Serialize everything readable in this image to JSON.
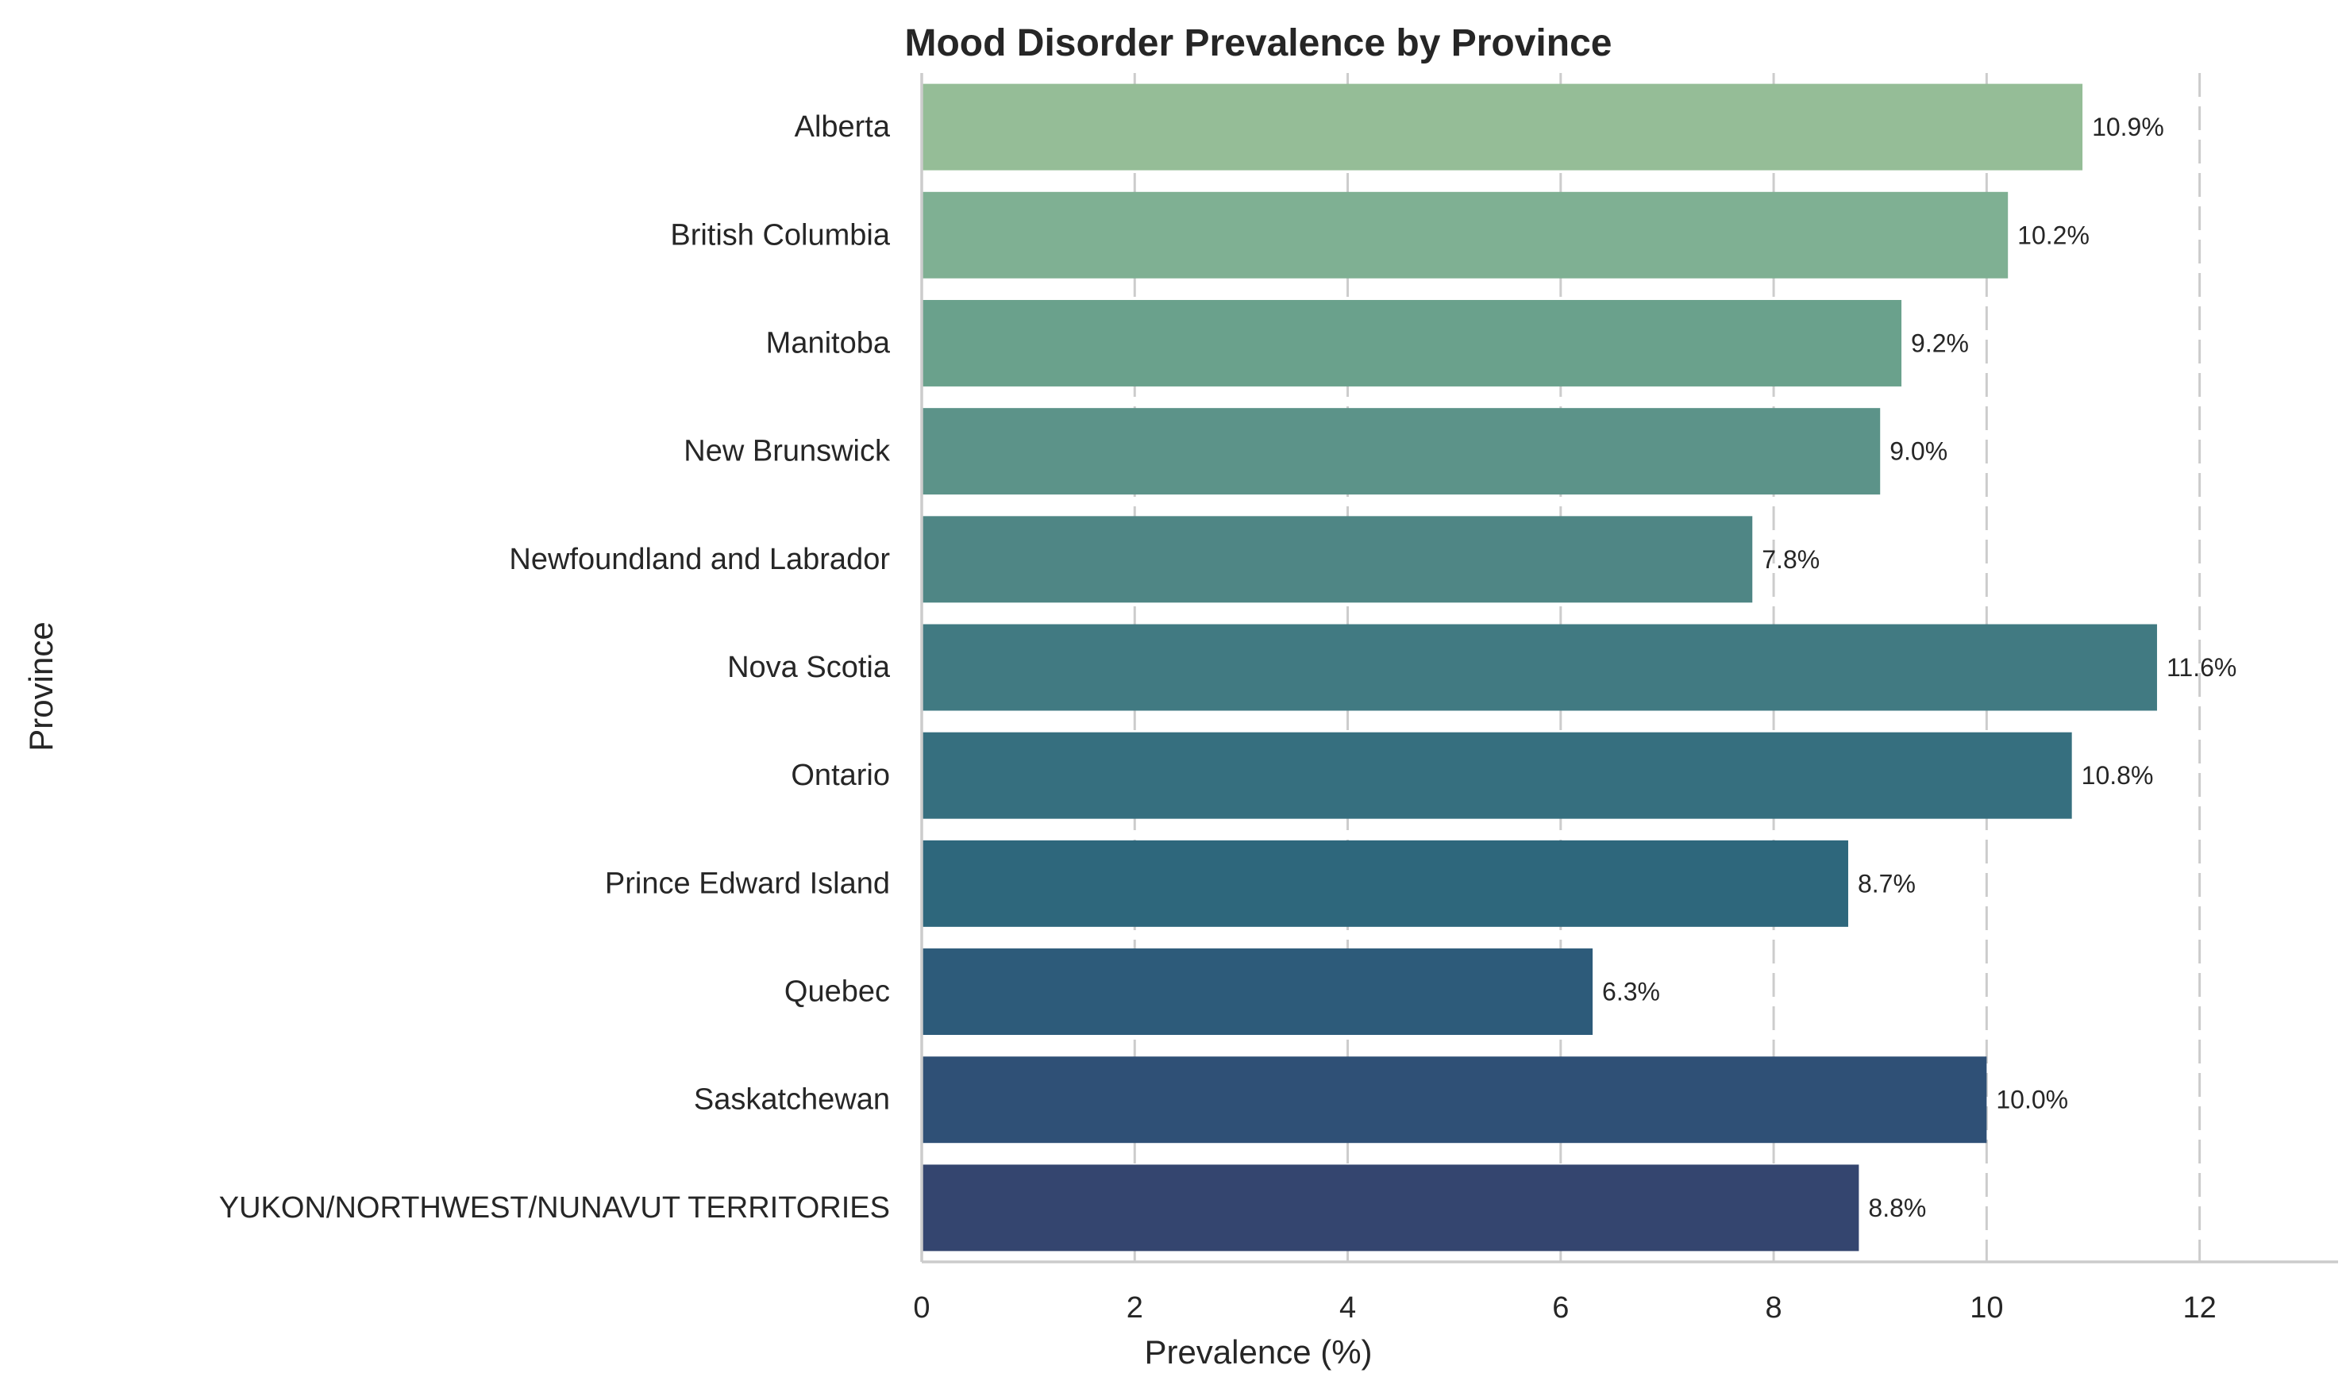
{
  "chart_data": {
    "type": "bar",
    "orientation": "horizontal",
    "title": "Mood Disorder Prevalence by Province",
    "xlabel": "Prevalence (%)",
    "ylabel": "Province",
    "xlim": [
      0,
      13.3
    ],
    "xticks": [
      0,
      2,
      4,
      6,
      8,
      10,
      12
    ],
    "grid": "vertical dashed",
    "categories": [
      "Alberta",
      "British Columbia",
      "Manitoba",
      "New Brunswick",
      "Newfoundland and Labrador",
      "Nova Scotia",
      "Ontario",
      "Prince Edward Island",
      "Quebec",
      "Saskatchewan",
      "YUKON/NORTHWEST/NUNAVUT TERRITORIES"
    ],
    "values": [
      10.9,
      10.2,
      9.2,
      9.0,
      7.8,
      11.6,
      10.8,
      8.7,
      6.3,
      10.0,
      8.8
    ],
    "data_labels": [
      "10.9%",
      "10.2%",
      "9.2%",
      "9.0%",
      "7.8%",
      "11.6%",
      "10.8%",
      "8.7%",
      "6.3%",
      "10.0%",
      "8.8%"
    ],
    "colors": [
      "#95bd97",
      "#7fb093",
      "#6aa18c",
      "#5c9389",
      "#4f8685",
      "#417a82",
      "#366f7f",
      "#2e677c",
      "#2d5b7a",
      "#2f5076",
      "#34456f"
    ],
    "axis_color": "#cccccc",
    "text_color": "#262626"
  }
}
